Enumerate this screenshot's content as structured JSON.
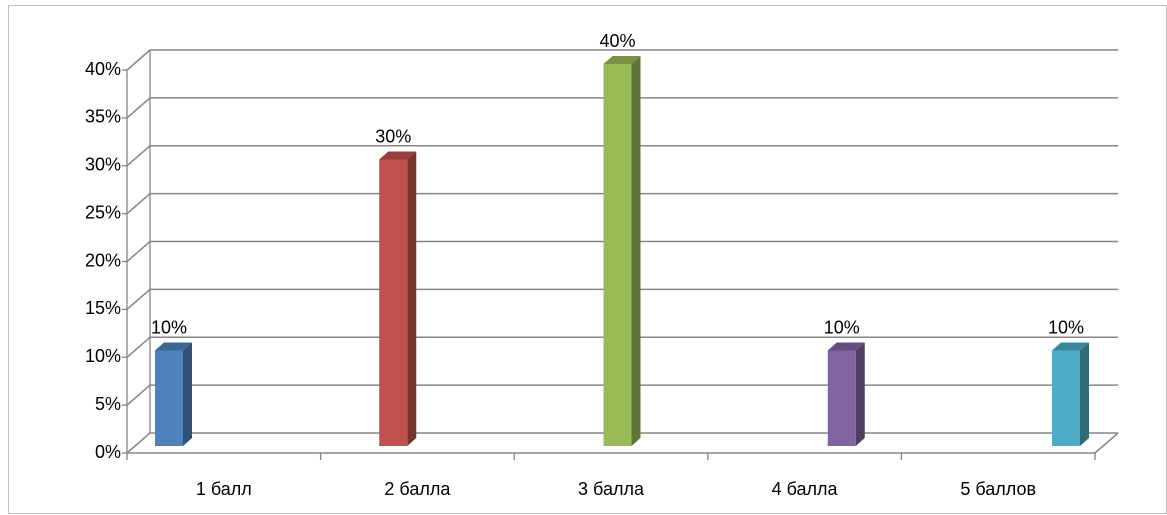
{
  "chart_data": {
    "type": "bar3d",
    "categories": [
      "1 балл",
      "2 балла",
      "3 балла",
      "4 балла",
      "5 баллов"
    ],
    "values": [
      10,
      30,
      40,
      10,
      10
    ],
    "value_labels": [
      "10%",
      "30%",
      "40%",
      "10%",
      "10%"
    ],
    "colors": [
      "#4f81bd",
      "#c0504d",
      "#9bbb59",
      "#8064a2",
      "#4bacc6"
    ],
    "ylim": [
      0,
      40
    ],
    "yticks": [
      {
        "value": 0,
        "label": "0%"
      },
      {
        "value": 5,
        "label": "5%"
      },
      {
        "value": 10,
        "label": "10%"
      },
      {
        "value": 15,
        "label": "15%"
      },
      {
        "value": 20,
        "label": "20%"
      },
      {
        "value": 25,
        "label": "25%"
      },
      {
        "value": 30,
        "label": "30%"
      },
      {
        "value": 35,
        "label": "35%"
      },
      {
        "value": 40,
        "label": "40%"
      }
    ],
    "grid": true
  }
}
